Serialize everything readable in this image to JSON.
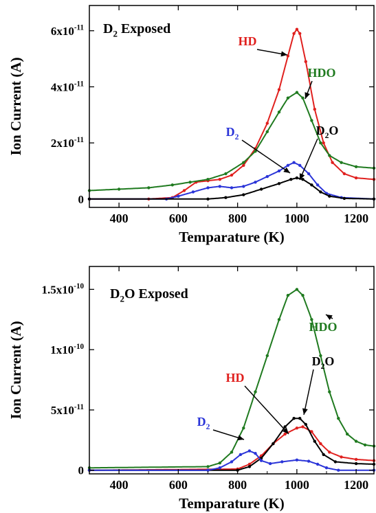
{
  "colors": {
    "HD": "#e0201e",
    "HDO": "#1f7a1f",
    "D2": "#2a34d8",
    "D2O": "#000000"
  },
  "chart_data": [
    {
      "type": "scatter",
      "panel_label": {
        "main": "D",
        "sub": "2",
        "rest": " Exposed"
      },
      "xlabel": "Temparature (K)",
      "ylabel": "Ion Current (A)",
      "xlim": [
        300,
        1260
      ],
      "ylim": [
        -3e-12,
        6.9e-11
      ],
      "xticks": [
        {
          "value": 400,
          "label": "400"
        },
        {
          "value": 600,
          "label": "600"
        },
        {
          "value": 800,
          "label": "800"
        },
        {
          "value": 1000,
          "label": "1000"
        },
        {
          "value": 1200,
          "label": "1200"
        }
      ],
      "yticks": [
        {
          "value": 0,
          "label": "0",
          "exp": ""
        },
        {
          "value": 2e-11,
          "label": "2x10",
          "exp": "-11"
        },
        {
          "value": 4e-11,
          "label": "4x10",
          "exp": "-11"
        },
        {
          "value": 6e-11,
          "label": "6x10",
          "exp": "-11"
        }
      ],
      "series": [
        {
          "name": "HD",
          "color_key": "HD",
          "points": [
            [
              300,
              0.0
            ],
            [
              500,
              0.0
            ],
            [
              580,
              5e-13
            ],
            [
              620,
              3e-12
            ],
            [
              660,
              6e-12
            ],
            [
              700,
              6.5e-12
            ],
            [
              740,
              7e-12
            ],
            [
              780,
              8.5e-12
            ],
            [
              820,
              1.2e-11
            ],
            [
              860,
              1.8e-11
            ],
            [
              900,
              2.7e-11
            ],
            [
              940,
              3.9e-11
            ],
            [
              970,
              5.1e-11
            ],
            [
              990,
              5.9e-11
            ],
            [
              1000,
              6.05e-11
            ],
            [
              1010,
              5.9e-11
            ],
            [
              1030,
              4.9e-11
            ],
            [
              1060,
              3.2e-11
            ],
            [
              1090,
              2e-11
            ],
            [
              1120,
              1.3e-11
            ],
            [
              1160,
              9e-12
            ],
            [
              1200,
              7.5e-12
            ],
            [
              1260,
              7e-12
            ]
          ]
        },
        {
          "name": "HDO",
          "color_key": "HDO",
          "points": [
            [
              300,
              3e-12
            ],
            [
              400,
              3.5e-12
            ],
            [
              500,
              4e-12
            ],
            [
              580,
              5e-12
            ],
            [
              640,
              6e-12
            ],
            [
              700,
              7e-12
            ],
            [
              760,
              9e-12
            ],
            [
              820,
              1.3e-11
            ],
            [
              860,
              1.7e-11
            ],
            [
              900,
              2.4e-11
            ],
            [
              940,
              3.1e-11
            ],
            [
              970,
              3.6e-11
            ],
            [
              1000,
              3.8e-11
            ],
            [
              1020,
              3.6e-11
            ],
            [
              1050,
              2.8e-11
            ],
            [
              1080,
              2e-11
            ],
            [
              1110,
              1.55e-11
            ],
            [
              1150,
              1.3e-11
            ],
            [
              1200,
              1.15e-11
            ],
            [
              1260,
              1.1e-11
            ]
          ]
        },
        {
          "name": "D2",
          "color_key": "D2",
          "points": [
            [
              300,
              0.0
            ],
            [
              560,
              0.0
            ],
            [
              600,
              1e-12
            ],
            [
              650,
              2.5e-12
            ],
            [
              700,
              4e-12
            ],
            [
              740,
              4.5e-12
            ],
            [
              780,
              4e-12
            ],
            [
              820,
              4.5e-12
            ],
            [
              860,
              6e-12
            ],
            [
              900,
              8e-12
            ],
            [
              940,
              1e-11
            ],
            [
              970,
              1.2e-11
            ],
            [
              990,
              1.3e-11
            ],
            [
              1010,
              1.2e-11
            ],
            [
              1040,
              9e-12
            ],
            [
              1070,
              5e-12
            ],
            [
              1100,
              2e-12
            ],
            [
              1150,
              5e-13
            ],
            [
              1260,
              0.0
            ]
          ]
        },
        {
          "name": "D2O",
          "color_key": "D2O",
          "points": [
            [
              300,
              0.0
            ],
            [
              700,
              0.0
            ],
            [
              760,
              5e-13
            ],
            [
              820,
              1.5e-12
            ],
            [
              880,
              3.5e-12
            ],
            [
              940,
              5.5e-12
            ],
            [
              980,
              7e-12
            ],
            [
              1000,
              7.5e-12
            ],
            [
              1020,
              7e-12
            ],
            [
              1050,
              5e-12
            ],
            [
              1080,
              2.5e-12
            ],
            [
              1110,
              1e-12
            ],
            [
              1160,
              2e-13
            ],
            [
              1260,
              0.0
            ]
          ]
        }
      ],
      "annotations": [
        {
          "series": "HD",
          "text": "HD",
          "sub": "",
          "after": ""
        },
        {
          "series": "HDO",
          "text": "HDO",
          "sub": "",
          "after": ""
        },
        {
          "series": "D2",
          "text": "D",
          "sub": "2",
          "after": ""
        },
        {
          "series": "D2O",
          "text": "D",
          "sub": "2",
          "after": "O"
        }
      ]
    },
    {
      "type": "scatter",
      "panel_label": {
        "main": "D",
        "sub": "2",
        "rest": "O Exposed"
      },
      "xlabel": "Temparature (K)",
      "ylabel": "Ion Current (A)",
      "xlim": [
        300,
        1260
      ],
      "ylim": [
        -3e-12,
        1.69e-10
      ],
      "xticks": [
        {
          "value": 400,
          "label": "400"
        },
        {
          "value": 600,
          "label": "600"
        },
        {
          "value": 800,
          "label": "800"
        },
        {
          "value": 1000,
          "label": "1000"
        },
        {
          "value": 1200,
          "label": "1200"
        }
      ],
      "yticks": [
        {
          "value": 0,
          "label": "0",
          "exp": ""
        },
        {
          "value": 5e-11,
          "label": "5x10",
          "exp": "-11"
        },
        {
          "value": 1e-10,
          "label": "1x10",
          "exp": "-10"
        },
        {
          "value": 1.5e-10,
          "label": "1.5x10",
          "exp": "-10"
        }
      ],
      "series": [
        {
          "name": "HDO",
          "color_key": "HDO",
          "points": [
            [
              300,
              2e-12
            ],
            [
              700,
              3e-12
            ],
            [
              740,
              6e-12
            ],
            [
              780,
              1.5e-11
            ],
            [
              820,
              3.5e-11
            ],
            [
              860,
              6.5e-11
            ],
            [
              900,
              9.5e-11
            ],
            [
              940,
              1.25e-10
            ],
            [
              970,
              1.45e-10
            ],
            [
              1000,
              1.5e-10
            ],
            [
              1020,
              1.45e-10
            ],
            [
              1050,
              1.25e-10
            ],
            [
              1080,
              9.5e-11
            ],
            [
              1110,
              6.5e-11
            ],
            [
              1140,
              4.3e-11
            ],
            [
              1170,
              3e-11
            ],
            [
              1200,
              2.4e-11
            ],
            [
              1230,
              2.1e-11
            ],
            [
              1260,
              2e-11
            ]
          ]
        },
        {
          "name": "HD",
          "color_key": "HD",
          "points": [
            [
              300,
              0.0
            ],
            [
              800,
              1e-12
            ],
            [
              840,
              5e-12
            ],
            [
              880,
              1.2e-11
            ],
            [
              920,
              2.2e-11
            ],
            [
              960,
              3e-11
            ],
            [
              1000,
              3.5e-11
            ],
            [
              1020,
              3.6e-11
            ],
            [
              1050,
              3.2e-11
            ],
            [
              1080,
              2.2e-11
            ],
            [
              1110,
              1.5e-11
            ],
            [
              1150,
              1.1e-11
            ],
            [
              1200,
              9e-12
            ],
            [
              1260,
              8e-12
            ]
          ]
        },
        {
          "name": "D2O",
          "color_key": "D2O",
          "points": [
            [
              300,
              0.0
            ],
            [
              800,
              0.0
            ],
            [
              840,
              3e-12
            ],
            [
              880,
              1e-11
            ],
            [
              920,
              2.2e-11
            ],
            [
              960,
              3.6e-11
            ],
            [
              990,
              4.3e-11
            ],
            [
              1010,
              4.3e-11
            ],
            [
              1030,
              3.8e-11
            ],
            [
              1060,
              2.4e-11
            ],
            [
              1090,
              1.3e-11
            ],
            [
              1130,
              7e-12
            ],
            [
              1200,
              5.5e-12
            ],
            [
              1260,
              5e-12
            ]
          ]
        },
        {
          "name": "D2",
          "color_key": "D2",
          "points": [
            [
              300,
              0.0
            ],
            [
              700,
              0.0
            ],
            [
              740,
              2e-12
            ],
            [
              780,
              7e-12
            ],
            [
              810,
              1.3e-11
            ],
            [
              840,
              1.6e-11
            ],
            [
              860,
              1.4e-11
            ],
            [
              880,
              8e-12
            ],
            [
              910,
              5.5e-12
            ],
            [
              950,
              7e-12
            ],
            [
              1000,
              8.5e-12
            ],
            [
              1040,
              7.5e-12
            ],
            [
              1070,
              5e-12
            ],
            [
              1100,
              2e-12
            ],
            [
              1140,
              0.0
            ],
            [
              1260,
              0.0
            ]
          ]
        }
      ],
      "annotations": [
        {
          "series": "HDO",
          "text": "HDO",
          "sub": "",
          "after": ""
        },
        {
          "series": "HD",
          "text": "HD",
          "sub": "",
          "after": ""
        },
        {
          "series": "D2O",
          "text": "D",
          "sub": "2",
          "after": "O"
        },
        {
          "series": "D2",
          "text": "D",
          "sub": "2",
          "after": ""
        }
      ]
    }
  ]
}
